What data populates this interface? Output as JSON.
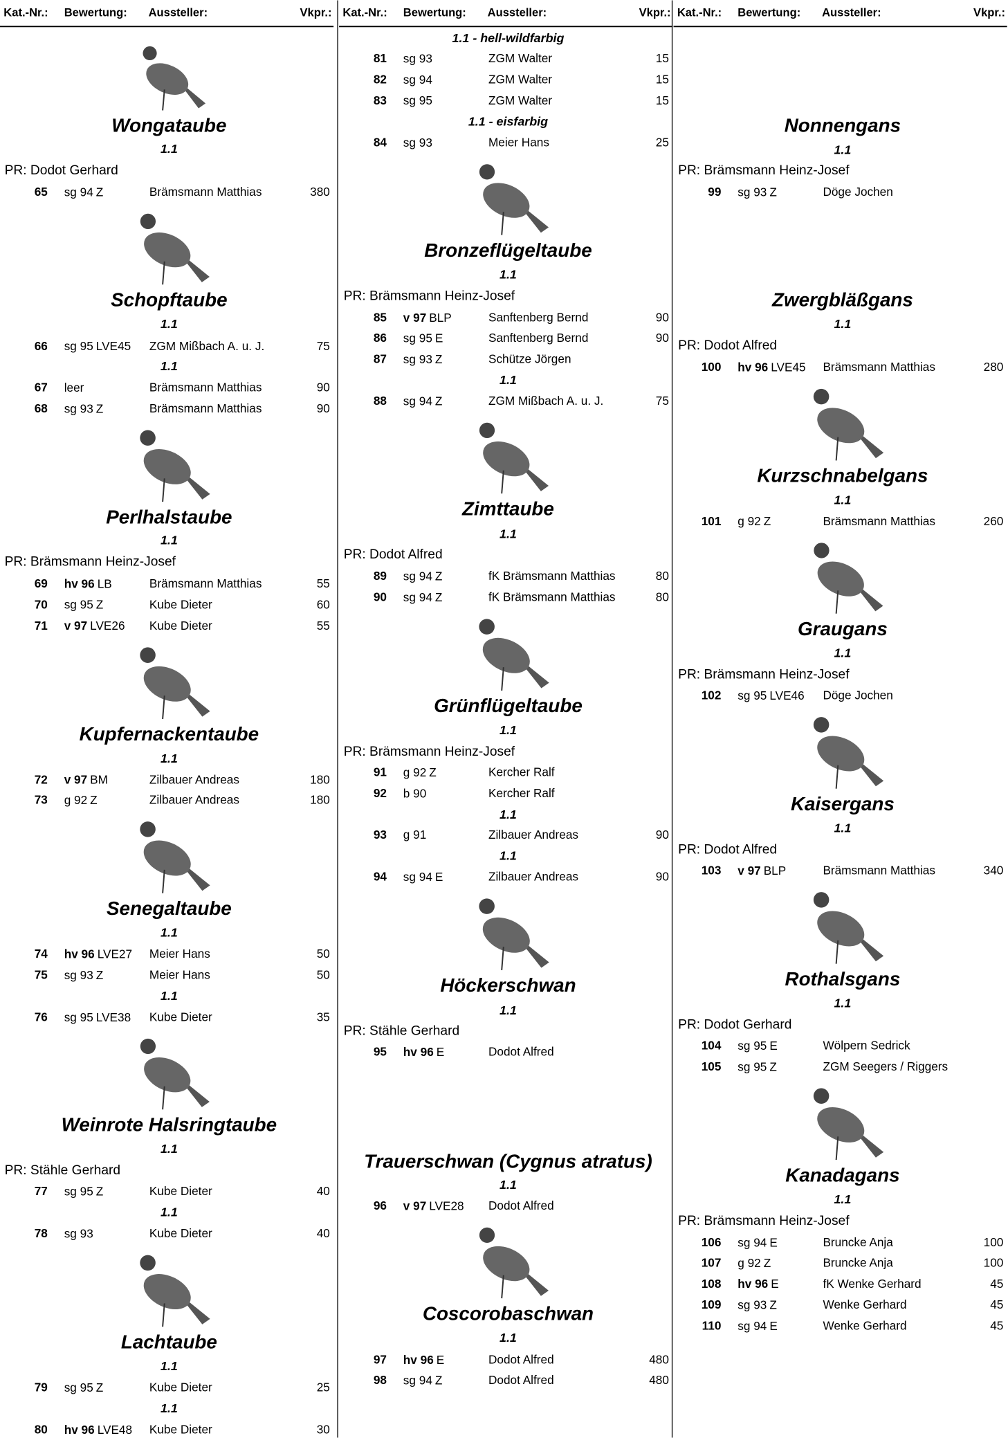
{
  "header": [
    "Kat.-Nr.:",
    "Bewertung:",
    "Aussteller:",
    "Vkpr.:"
  ],
  "columns": [
    [
      {
        "species": "Wongataube"
      },
      {
        "class": "1.1"
      },
      {
        "judge": "PR: Dodot Gerhard"
      },
      {
        "entry": {
          "nr": 65,
          "grade": "sg 94",
          "award": "Z",
          "exhibitor": "Brämsmann Matthias",
          "price": 380
        }
      },
      {
        "species": "Schopftaube"
      },
      {
        "class": "1.1"
      },
      {
        "entry": {
          "nr": 66,
          "grade": "sg 95",
          "award": "LVE45",
          "exhibitor": "ZGM Mißbach A. u. J.",
          "price": 75
        }
      },
      {
        "class": "1.1"
      },
      {
        "entry": {
          "nr": 67,
          "grade": "leer",
          "exhibitor": "Brämsmann Matthias",
          "price": 90
        }
      },
      {
        "entry": {
          "nr": 68,
          "grade": "sg 93",
          "award": "Z",
          "exhibitor": "Brämsmann Matthias",
          "price": 90
        }
      },
      {
        "species": "Perlhalstaube"
      },
      {
        "class": "1.1"
      },
      {
        "judge": "PR: Brämsmann Heinz-Josef"
      },
      {
        "entry": {
          "nr": 69,
          "grade": "hv 96",
          "award": "LB",
          "exhibitor": "Brämsmann Matthias",
          "price": 55
        }
      },
      {
        "entry": {
          "nr": 70,
          "grade": "sg 95",
          "award": "Z",
          "exhibitor": "Kube Dieter",
          "price": 60
        }
      },
      {
        "entry": {
          "nr": 71,
          "grade": "v 97",
          "award": "LVE26",
          "exhibitor": "Kube Dieter",
          "price": 55
        }
      },
      {
        "species": "Kupfernackentaube"
      },
      {
        "class": "1.1"
      },
      {
        "entry": {
          "nr": 72,
          "grade": "v 97",
          "award": "BM",
          "exhibitor": "Zilbauer Andreas",
          "price": 180
        }
      },
      {
        "entry": {
          "nr": 73,
          "grade": "g 92",
          "award": "Z",
          "exhibitor": "Zilbauer Andreas",
          "price": 180
        }
      },
      {
        "species": "Senegaltaube"
      },
      {
        "class": "1.1"
      },
      {
        "entry": {
          "nr": 74,
          "grade": "hv 96",
          "award": "LVE27",
          "exhibitor": "Meier Hans",
          "price": 50
        }
      },
      {
        "entry": {
          "nr": 75,
          "grade": "sg 93",
          "award": "Z",
          "exhibitor": "Meier Hans",
          "price": 50
        }
      },
      {
        "class": "1.1"
      },
      {
        "entry": {
          "nr": 76,
          "grade": "sg 95",
          "award": "LVE38",
          "exhibitor": "Kube Dieter",
          "price": 35
        }
      },
      {
        "species": "Weinrote Halsringtaube"
      },
      {
        "class": "1.1"
      },
      {
        "judge": "PR: Stähle Gerhard"
      },
      {
        "entry": {
          "nr": 77,
          "grade": "sg 95",
          "award": "Z",
          "exhibitor": "Kube Dieter",
          "price": 40
        }
      },
      {
        "class": "1.1"
      },
      {
        "entry": {
          "nr": 78,
          "grade": "sg 93",
          "exhibitor": "Kube Dieter",
          "price": 40
        }
      },
      {
        "species": "Lachtaube"
      },
      {
        "class": "1.1"
      },
      {
        "entry": {
          "nr": 79,
          "grade": "sg 95",
          "award": "Z",
          "exhibitor": "Kube Dieter",
          "price": 25
        }
      },
      {
        "class": "1.1"
      },
      {
        "entry": {
          "nr": 80,
          "grade": "hv 96",
          "award": "LVE48",
          "exhibitor": "Kube Dieter",
          "price": 30
        }
      }
    ],
    [
      {
        "class": "1.1 - hell-wildfarbig"
      },
      {
        "entry": {
          "nr": 81,
          "grade": "sg 93",
          "exhibitor": "ZGM Walter",
          "price": 15
        }
      },
      {
        "entry": {
          "nr": 82,
          "grade": "sg 94",
          "exhibitor": "ZGM Walter",
          "price": 15
        }
      },
      {
        "entry": {
          "nr": 83,
          "grade": "sg 95",
          "exhibitor": "ZGM Walter",
          "price": 15
        }
      },
      {
        "class": "1.1 - eisfarbig"
      },
      {
        "entry": {
          "nr": 84,
          "grade": "sg 93",
          "exhibitor": "Meier Hans",
          "price": 25
        }
      },
      {
        "species": "Bronzeflügeltaube"
      },
      {
        "class": "1.1"
      },
      {
        "judge": "PR: Brämsmann Heinz-Josef"
      },
      {
        "entry": {
          "nr": 85,
          "grade": "v 97",
          "award": "BLP",
          "exhibitor": "Sanftenberg Bernd",
          "price": 90
        }
      },
      {
        "entry": {
          "nr": 86,
          "grade": "sg 95",
          "award": "E",
          "exhibitor": "Sanftenberg Bernd",
          "price": 90
        }
      },
      {
        "entry": {
          "nr": 87,
          "grade": "sg 93",
          "award": "Z",
          "exhibitor": "Schütze Jörgen"
        }
      },
      {
        "class": "1.1"
      },
      {
        "entry": {
          "nr": 88,
          "grade": "sg 94",
          "award": "Z",
          "exhibitor": "ZGM Mißbach A. u. J.",
          "price": 75
        }
      },
      {
        "species": "Zimttaube"
      },
      {
        "class": "1.1"
      },
      {
        "judge": "PR: Dodot Alfred"
      },
      {
        "entry": {
          "nr": 89,
          "grade": "sg 94",
          "award": "Z",
          "exhibitor": "fK Brämsmann Matthias",
          "price": 80
        }
      },
      {
        "entry": {
          "nr": 90,
          "grade": "sg 94",
          "award": "Z",
          "exhibitor": "fK Brämsmann Matthias",
          "price": 80
        }
      },
      {
        "species": "Grünflügeltaube"
      },
      {
        "class": "1.1"
      },
      {
        "judge": "PR: Brämsmann Heinz-Josef"
      },
      {
        "entry": {
          "nr": 91,
          "grade": "g 92",
          "award": "Z",
          "exhibitor": "Kercher Ralf"
        }
      },
      {
        "entry": {
          "nr": 92,
          "grade": "b 90",
          "exhibitor": "Kercher Ralf"
        }
      },
      {
        "class": "1.1"
      },
      {
        "entry": {
          "nr": 93,
          "grade": "g 91",
          "exhibitor": "Zilbauer Andreas",
          "price": 90
        }
      },
      {
        "class": "1.1"
      },
      {
        "entry": {
          "nr": 94,
          "grade": "sg 94",
          "award": "E",
          "exhibitor": "Zilbauer Andreas",
          "price": 90
        }
      },
      {
        "species": "Höckerschwan"
      },
      {
        "class": "1.1"
      },
      {
        "judge": "PR: Stähle Gerhard"
      },
      {
        "entry": {
          "nr": 95,
          "grade": "hv 96",
          "award": "E",
          "exhibitor": "Dodot Alfred"
        }
      },
      {
        "species": "Trauerschwan (Cygnus atratus)"
      },
      {
        "class": "1.1"
      },
      {
        "entry": {
          "nr": 96,
          "grade": "v 97",
          "award": "LVE28",
          "exhibitor": "Dodot Alfred"
        }
      },
      {
        "species": "Coscorobaschwan"
      },
      {
        "class": "1.1"
      },
      {
        "entry": {
          "nr": 97,
          "grade": "hv 96",
          "award": "E",
          "exhibitor": "Dodot Alfred",
          "price": 480
        }
      },
      {
        "entry": {
          "nr": 98,
          "grade": "sg 94",
          "award": "Z",
          "exhibitor": "Dodot Alfred",
          "price": 480
        }
      }
    ],
    [
      {
        "species": "Nonnengans"
      },
      {
        "class": "1.1"
      },
      {
        "judge": "PR: Brämsmann Heinz-Josef"
      },
      {
        "entry": {
          "nr": 99,
          "grade": "sg 93",
          "award": "Z",
          "exhibitor": "Döge Jochen"
        }
      },
      {
        "species": "Zwergbläßgans"
      },
      {
        "class": "1.1"
      },
      {
        "judge": "PR: Dodot Alfred"
      },
      {
        "entry": {
          "nr": 100,
          "grade": "hv 96",
          "award": "LVE45",
          "exhibitor": "Brämsmann Matthias",
          "price": 280
        }
      },
      {
        "species": "Kurzschnabelgans"
      },
      {
        "class": "1.1"
      },
      {
        "entry": {
          "nr": 101,
          "grade": "g 92",
          "award": "Z",
          "exhibitor": "Brämsmann Matthias",
          "price": 260
        }
      },
      {
        "species": "Graugans"
      },
      {
        "class": "1.1"
      },
      {
        "judge": "PR: Brämsmann Heinz-Josef"
      },
      {
        "entry": {
          "nr": 102,
          "grade": "sg 95",
          "award": "LVE46",
          "exhibitor": "Döge Jochen"
        }
      },
      {
        "species": "Kaisergans"
      },
      {
        "class": "1.1"
      },
      {
        "judge": "PR: Dodot Alfred"
      },
      {
        "entry": {
          "nr": 103,
          "grade": "v 97",
          "award": "BLP",
          "exhibitor": "Brämsmann Matthias",
          "price": 340
        }
      },
      {
        "species": "Rothalsgans"
      },
      {
        "class": "1.1"
      },
      {
        "judge": "PR: Dodot Gerhard"
      },
      {
        "entry": {
          "nr": 104,
          "grade": "sg 95",
          "award": "E",
          "exhibitor": "Wölpern Sedrick"
        }
      },
      {
        "entry": {
          "nr": 105,
          "grade": "sg 95",
          "award": "Z",
          "exhibitor": "ZGM Seegers / Riggers"
        }
      },
      {
        "species": "Kanadagans"
      },
      {
        "class": "1.1"
      },
      {
        "judge": "PR: Brämsmann Heinz-Josef"
      },
      {
        "entry": {
          "nr": 106,
          "grade": "sg 94",
          "award": "E",
          "exhibitor": "Bruncke Anja",
          "price": 100
        }
      },
      {
        "entry": {
          "nr": 107,
          "grade": "g 92",
          "award": "Z",
          "exhibitor": "Bruncke Anja",
          "price": 100
        }
      },
      {
        "entry": {
          "nr": 108,
          "grade": "hv 96",
          "award": "E",
          "exhibitor": "fK Wenke Gerhard",
          "price": 45
        }
      },
      {
        "entry": {
          "nr": 109,
          "grade": "sg 93",
          "award": "Z",
          "exhibitor": "Wenke Gerhard",
          "price": 45
        }
      },
      {
        "entry": {
          "nr": 110,
          "grade": "sg 94",
          "award": "E",
          "exhibitor": "Wenke Gerhard",
          "price": 45
        }
      }
    ]
  ]
}
